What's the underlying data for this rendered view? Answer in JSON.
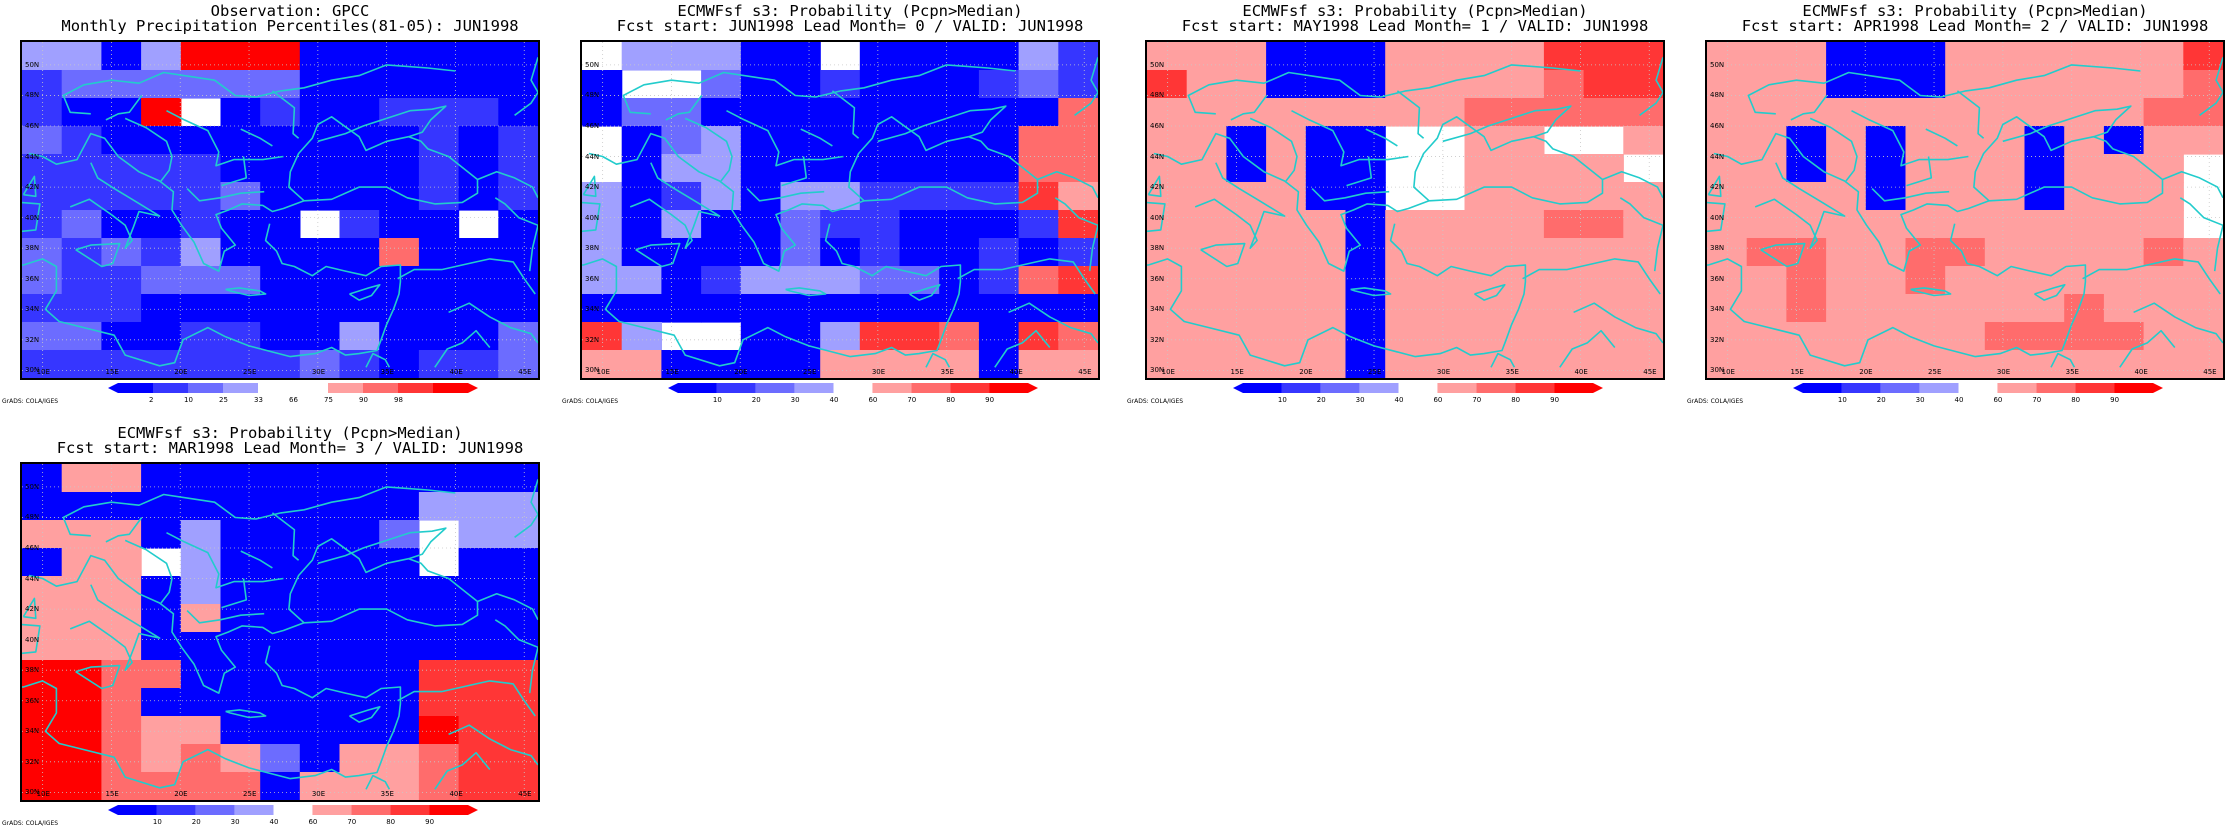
{
  "lat_labels": [
    "50N",
    "48N",
    "46N",
    "44N",
    "42N",
    "40N",
    "38N",
    "36N",
    "34N",
    "32N",
    "30N"
  ],
  "lon_labels": [
    "10E",
    "15E",
    "20E",
    "25E",
    "30E",
    "35E",
    "40E",
    "45E"
  ],
  "credit": "GrADS: COLA/IGES",
  "colors": {
    "map_border": "#000000",
    "coast": "#22cccc",
    "grid": "#c8c8c8",
    "scale_obs": [
      "#0000ff",
      "#3636ff",
      "#6c6cff",
      "#a0a0ff",
      "#ffffff",
      "#ffffff",
      "#ffa0a0",
      "#ff6c6c",
      "#ff3636",
      "#ff0000"
    ],
    "scale_prob": [
      "#0000ff",
      "#3636ff",
      "#6c6cff",
      "#a0a0ff",
      "#ffffff",
      "#ffa0a0",
      "#ff6c6c",
      "#ff3636",
      "#ff0000"
    ]
  },
  "panels": [
    {
      "title1": "Observation: GPCC",
      "title2": "Monthly Precipitation Percentiles(81-05): JUN1998",
      "colorbar_labels": [
        "2",
        "10",
        "25",
        "33",
        "66",
        "75",
        "90",
        "98"
      ],
      "scale": "obs",
      "grid": [
        "3303999000000",
        "1222222000000",
        "1009401001110",
        "2100000000101",
        "1111100000101",
        "1111120000101",
        "1200100410040",
        "2121300007000",
        "2112220000000",
        "1110000000000",
        "2200110030002",
        "1111111210112"
      ]
    },
    {
      "title1": "ECMWFsf s3: Probability (Pcpn>Median)",
      "title2": "Fcst start: JUN1998  Lead Month= 0 / VALID: JUN1998",
      "colorbar_labels": [
        "10",
        "20",
        "30",
        "40",
        "60",
        "70",
        "80",
        "90"
      ],
      "scale": "prob",
      "grid": [
        "4333004000031",
        "0442001000121",
        "0220000000006",
        "4023000000066",
        "4033000000066",
        "3013033111175",
        "3030021100017",
        "3000020100101",
        "3301333220167",
        "0000000000000",
        "7344003776076",
        "5500005555055"
      ]
    },
    {
      "title1": "ECMWFsf s3: Probability (Pcpn>Median)",
      "title2": "Fcst start: MAY1998  Lead Month= 1 / VALID: JUN1998",
      "colorbar_labels": [
        "10",
        "20",
        "30",
        "40",
        "60",
        "70",
        "80",
        "90"
      ],
      "scale": "prob",
      "grid": [
        "5550005555777",
        "7550005555677",
        "5555555566666",
        "5505004455445",
        "5505004455554",
        "5555004455555",
        "5555505555665",
        "5555505555555",
        "5555505555555",
        "5555505555555",
        "5555505555555",
        "5555505555555"
      ]
    },
    {
      "title1": "ECMWFsf s3: Probability (Pcpn>Median)",
      "title2": "Fcst start: APR1998  Lead Month= 2 / VALID: JUN1998",
      "colorbar_labels": [
        "10",
        "20",
        "30",
        "40",
        "60",
        "70",
        "80",
        "90"
      ],
      "scale": "prob",
      "grid": [
        "5550005555557",
        "5550005555556",
        "5555555555566",
        "5505055505055",
        "5505055505554",
        "5555055505554",
        "5555555555554",
        "5665566555565",
        "5565565555555",
        "5565555556555",
        "5555555666655",
        "5555555555555"
      ]
    },
    {
      "title1": "ECMWFsf s3: Probability (Pcpn>Median)",
      "title2": "Fcst start: MAR1998  Lead Month= 3 / VALID: JUN1998",
      "colorbar_labels": [
        "10",
        "20",
        "30",
        "40",
        "60",
        "70",
        "80",
        "90"
      ],
      "scale": "prob",
      "grid": [
        "0550000000000",
        "0000000000333",
        "5550300002433",
        "0554300000400",
        "5550300000000",
        "5550500000000",
        "5550000000000",
        "8866000000777",
        "8860000000777",
        "8865500000877",
        "8865652055677",
        "8866660555677"
      ]
    }
  ]
}
